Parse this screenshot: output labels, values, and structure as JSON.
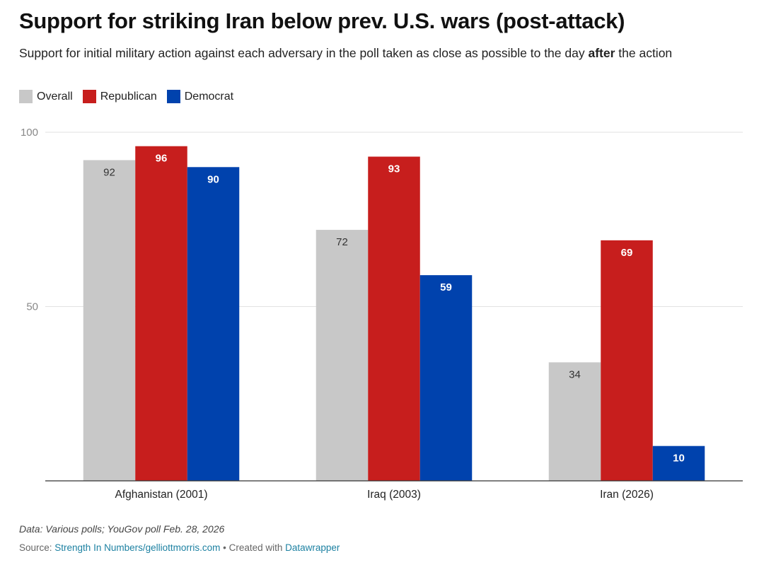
{
  "title": "Support for striking Iran below prev. U.S. wars (post-attack)",
  "subtitle_before": "Support for initial military action against each adversary in the poll taken as close as possible to the day ",
  "subtitle_bold": "after",
  "subtitle_after": " the action",
  "legend": [
    {
      "label": "Overall",
      "color": "#c8c8c8"
    },
    {
      "label": "Republican",
      "color": "#c71e1d"
    },
    {
      "label": "Democrat",
      "color": "#0042ad"
    }
  ],
  "chart_data": {
    "type": "bar",
    "categories": [
      "Afghanistan (2001)",
      "Iraq (2003)",
      "Iran (2026)"
    ],
    "series": [
      {
        "name": "Overall",
        "values": [
          92,
          72,
          34
        ],
        "color": "#c8c8c8",
        "label_color": "#333333"
      },
      {
        "name": "Republican",
        "values": [
          96,
          93,
          69
        ],
        "color": "#c71e1d",
        "label_color": "#ffffff"
      },
      {
        "name": "Democrat",
        "values": [
          90,
          59,
          10
        ],
        "color": "#0042ad",
        "label_color": "#ffffff"
      }
    ],
    "y_ticks": [
      "100",
      "50"
    ],
    "y_tick_values": [
      100,
      50
    ],
    "ylim": [
      0,
      100
    ],
    "grid": true,
    "legend_position": "top-left"
  },
  "footer": {
    "note": "Data: Various polls; YouGov poll Feb. 28, 2026",
    "source_prefix": "Source: ",
    "source_link": "Strength In Numbers/gelliottmorris.com",
    "separator": " • Created with ",
    "tool_link": "Datawrapper"
  }
}
